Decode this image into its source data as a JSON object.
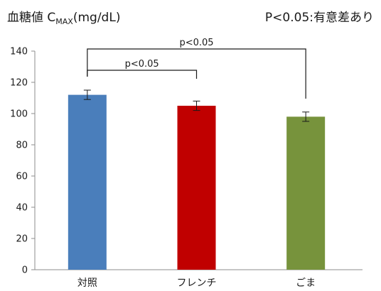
{
  "chart_data": {
    "type": "bar",
    "title": "血糖値 C",
    "title_subscript": "MAX",
    "title_unit": "(mg/dL)",
    "note": "P<0.05:有意差あり",
    "categories": [
      "対照",
      "フレンチ",
      "ごま"
    ],
    "values": [
      112,
      105,
      98
    ],
    "errors": [
      3,
      3,
      3
    ],
    "colors": [
      "#4a7ebb",
      "#c00000",
      "#77933c"
    ],
    "ylim": [
      0,
      140
    ],
    "yticks": [
      0,
      20,
      40,
      60,
      80,
      100,
      120,
      140
    ],
    "grid": false,
    "significance": [
      {
        "from": 0,
        "to": 1,
        "label": "p<0.05"
      },
      {
        "from": 0,
        "to": 2,
        "label": "p<0.05"
      }
    ]
  }
}
